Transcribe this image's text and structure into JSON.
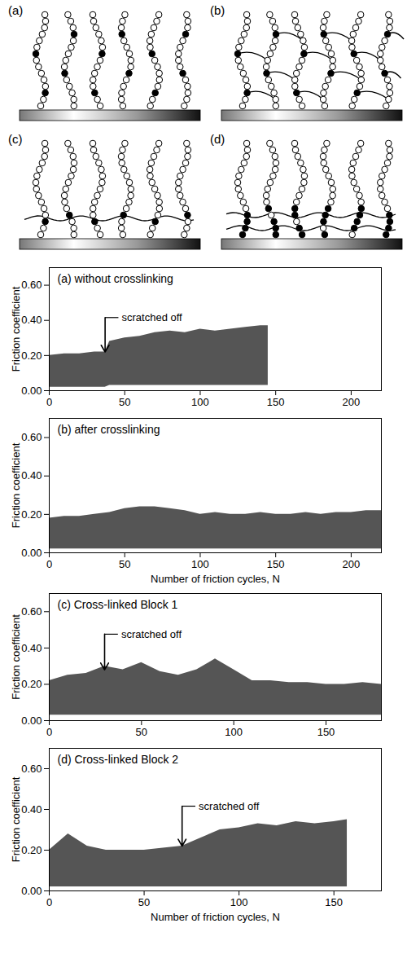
{
  "schematic": {
    "panel_labels": [
      "(a)",
      "(b)",
      "(c)",
      "(d)"
    ]
  },
  "chart_data": [
    {
      "type": "area",
      "title": "(a) without crosslinking",
      "ylabel": "Friction coefficient",
      "color": "#555555",
      "x": [
        0,
        10,
        20,
        30,
        37,
        40,
        50,
        60,
        70,
        80,
        90,
        100,
        110,
        120,
        130,
        140,
        145
      ],
      "y_max": [
        0.2,
        0.21,
        0.21,
        0.22,
        0.22,
        0.28,
        0.3,
        0.31,
        0.33,
        0.34,
        0.33,
        0.35,
        0.34,
        0.35,
        0.36,
        0.37,
        0.37
      ],
      "y_min": [
        0.02,
        0.02,
        0.02,
        0.02,
        0.02,
        0.03,
        0.03,
        0.03,
        0.03,
        0.03,
        0.03,
        0.03,
        0.03,
        0.03,
        0.03,
        0.03,
        0.03
      ],
      "xlim": [
        0,
        220
      ],
      "xticks": [
        0,
        50,
        100,
        150,
        200
      ],
      "ylim": [
        0,
        0.7
      ],
      "yticks": [
        0,
        0.2,
        0.4,
        0.6
      ],
      "annotations": [
        {
          "text": "scratched off",
          "x": 37,
          "y": 0.22
        }
      ]
    },
    {
      "type": "area",
      "title": "(b) after crosslinking",
      "xlabel": "Number of friction cycles, N",
      "ylabel": "Friction coefficient",
      "color": "#555555",
      "x": [
        0,
        10,
        20,
        30,
        40,
        50,
        60,
        70,
        80,
        90,
        100,
        110,
        120,
        130,
        140,
        150,
        160,
        170,
        180,
        190,
        200,
        210,
        220
      ],
      "y_max": [
        0.18,
        0.19,
        0.19,
        0.2,
        0.21,
        0.23,
        0.24,
        0.24,
        0.23,
        0.22,
        0.2,
        0.21,
        0.2,
        0.2,
        0.21,
        0.2,
        0.2,
        0.21,
        0.2,
        0.21,
        0.21,
        0.22,
        0.22
      ],
      "y_min": [
        0.02,
        0.02,
        0.02,
        0.02,
        0.02,
        0.02,
        0.02,
        0.02,
        0.02,
        0.02,
        0.02,
        0.02,
        0.02,
        0.02,
        0.02,
        0.02,
        0.02,
        0.02,
        0.02,
        0.02,
        0.02,
        0.02,
        0.02
      ],
      "xlim": [
        0,
        220
      ],
      "xticks": [
        0,
        50,
        100,
        150,
        200
      ],
      "ylim": [
        0,
        0.7
      ],
      "yticks": [
        0,
        0.2,
        0.4,
        0.6
      ]
    },
    {
      "type": "area",
      "title": "(c) Cross-linked Block 1",
      "ylabel": "Friction coefficient",
      "color": "#555555",
      "x": [
        0,
        10,
        20,
        30,
        40,
        50,
        60,
        70,
        80,
        90,
        100,
        110,
        120,
        130,
        140,
        150,
        160,
        170,
        180
      ],
      "y_max": [
        0.22,
        0.25,
        0.26,
        0.3,
        0.28,
        0.32,
        0.27,
        0.25,
        0.28,
        0.34,
        0.28,
        0.22,
        0.22,
        0.21,
        0.21,
        0.2,
        0.2,
        0.21,
        0.2
      ],
      "y_min": [
        0.03,
        0.03,
        0.03,
        0.03,
        0.03,
        0.03,
        0.03,
        0.03,
        0.03,
        0.03,
        0.03,
        0.03,
        0.03,
        0.03,
        0.03,
        0.03,
        0.03,
        0.03,
        0.03
      ],
      "xlim": [
        0,
        180
      ],
      "xticks": [
        0,
        50,
        100,
        150
      ],
      "ylim": [
        0,
        0.7
      ],
      "yticks": [
        0,
        0.2,
        0.4,
        0.6
      ],
      "annotations": [
        {
          "text": "scratched off",
          "x": 30,
          "y": 0.28
        }
      ]
    },
    {
      "type": "area",
      "title": "(d) Cross-linked Block 2",
      "xlabel": "Number of friction cycles, N",
      "ylabel": "Friction coefficient",
      "color": "#555555",
      "x": [
        0,
        10,
        20,
        30,
        40,
        50,
        60,
        70,
        80,
        90,
        100,
        110,
        120,
        130,
        140,
        150,
        157
      ],
      "y_max": [
        0.2,
        0.28,
        0.22,
        0.2,
        0.2,
        0.2,
        0.21,
        0.22,
        0.26,
        0.3,
        0.31,
        0.33,
        0.32,
        0.34,
        0.33,
        0.34,
        0.35
      ],
      "y_min": [
        0.02,
        0.02,
        0.02,
        0.02,
        0.02,
        0.02,
        0.02,
        0.02,
        0.02,
        0.02,
        0.02,
        0.02,
        0.02,
        0.02,
        0.02,
        0.02,
        0.02
      ],
      "xlim": [
        0,
        175
      ],
      "xticks": [
        0,
        50,
        100,
        150
      ],
      "ylim": [
        0,
        0.7
      ],
      "yticks": [
        0,
        0.2,
        0.4,
        0.6
      ],
      "annotations": [
        {
          "text": "scratched off",
          "x": 70,
          "y": 0.22
        }
      ]
    }
  ]
}
